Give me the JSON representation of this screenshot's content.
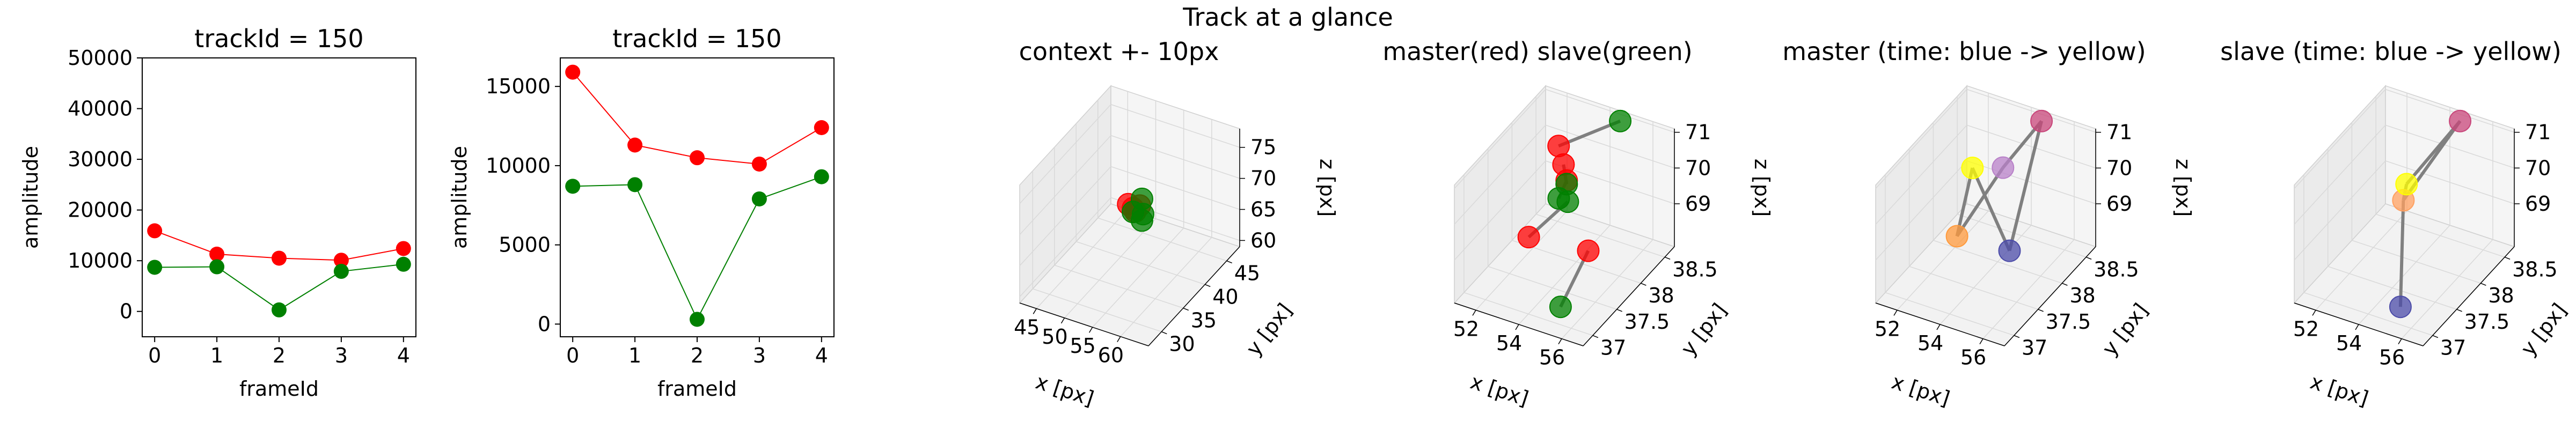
{
  "suptitle": "Track at a glance",
  "colors": {
    "master": "#ff0000",
    "slave": "#008000",
    "connector": "#808080"
  },
  "chart_data": [
    {
      "type": "line",
      "title": "trackId = 150",
      "xlabel": "frameId",
      "ylabel": "amplitude",
      "xlim": [
        -0.2,
        4.2
      ],
      "ylim": [
        -5000,
        50000
      ],
      "xticks": [
        0,
        1,
        2,
        3,
        4
      ],
      "yticks": [
        0,
        10000,
        20000,
        30000,
        40000,
        50000
      ],
      "x": [
        0,
        1,
        2,
        3,
        4
      ],
      "series": [
        {
          "color": "#ff0000",
          "values": [
            15900,
            11300,
            10500,
            10100,
            12400
          ]
        },
        {
          "color": "#008000",
          "values": [
            8700,
            8800,
            300,
            7900,
            9300
          ]
        }
      ]
    },
    {
      "type": "line",
      "title": "trackId = 150",
      "xlabel": "frameId",
      "ylabel": "amplitude",
      "xlim": [
        -0.2,
        4.2
      ],
      "ylim": [
        -800,
        16800
      ],
      "xticks": [
        0,
        1,
        2,
        3,
        4
      ],
      "yticks": [
        0,
        5000,
        10000,
        15000
      ],
      "x": [
        0,
        1,
        2,
        3,
        4
      ],
      "series": [
        {
          "color": "#ff0000",
          "values": [
            15900,
            11300,
            10500,
            10100,
            12400
          ]
        },
        {
          "color": "#008000",
          "values": [
            8700,
            8800,
            300,
            7900,
            9300
          ]
        }
      ]
    },
    {
      "type": "scatter3d",
      "title": "context +- 10px",
      "xlabel": "x [px]",
      "ylabel": "y [px]",
      "zlabel": "z [px]",
      "xlim": [
        42,
        65
      ],
      "ylim": [
        27,
        48
      ],
      "zlim": [
        59,
        78
      ],
      "xticks": [
        45,
        50,
        55,
        60
      ],
      "yticks": [
        30,
        35,
        40,
        45
      ],
      "zticks": [
        60,
        65,
        70,
        75
      ],
      "points": [
        {
          "x": 53,
          "y": 37.8,
          "z": 70.0,
          "color": "#ff0000"
        },
        {
          "x": 54,
          "y": 37.6,
          "z": 69.8,
          "color": "#ff0000"
        },
        {
          "x": 54.5,
          "y": 37.5,
          "z": 69.5,
          "color": "#ff0000"
        },
        {
          "x": 55,
          "y": 37.9,
          "z": 70.3,
          "color": "#ff0000"
        },
        {
          "x": 55,
          "y": 38.4,
          "z": 71.0,
          "color": "#008000"
        },
        {
          "x": 54,
          "y": 37.6,
          "z": 69.2,
          "color": "#008000"
        },
        {
          "x": 55.5,
          "y": 38.0,
          "z": 69.0,
          "color": "#008000"
        },
        {
          "x": 56,
          "y": 37.1,
          "z": 68.8,
          "color": "#008000"
        }
      ]
    },
    {
      "type": "scatter3d",
      "title": "master(red) slave(green)",
      "xlabel": "x [px]",
      "ylabel": "y [px]",
      "zlabel": "z [px]",
      "xlim": [
        51,
        57
      ],
      "ylim": [
        36.8,
        38.7
      ],
      "zlim": [
        67.8,
        71.1
      ],
      "xticks": [
        52,
        54,
        56
      ],
      "yticks": [
        37.0,
        37.5,
        38.0,
        38.5
      ],
      "zticks": [
        69,
        70,
        71
      ],
      "points": [
        {
          "x": 52.5,
          "y": 38.3,
          "z": 70.3,
          "color": "#ff0000"
        },
        {
          "x": 53.4,
          "y": 38.0,
          "z": 70.4,
          "color": "#ff0000"
        },
        {
          "x": 53.1,
          "y": 38.2,
          "z": 69.6,
          "color": "#ff0000"
        },
        {
          "x": 55.0,
          "y": 37.8,
          "z": 68.6,
          "color": "#ff0000"
        },
        {
          "x": 52.9,
          "y": 37.5,
          "z": 69.0,
          "color": "#ff0000"
        },
        {
          "x": 54.7,
          "y": 38.6,
          "z": 71.0,
          "color": "#008000"
        },
        {
          "x": 53.1,
          "y": 38.2,
          "z": 69.5,
          "color": "#008000"
        },
        {
          "x": 53.4,
          "y": 37.9,
          "z": 69.6,
          "color": "#008000"
        },
        {
          "x": 55.5,
          "y": 37.0,
          "z": 68.3,
          "color": "#008000"
        },
        {
          "x": 53.6,
          "y": 38.0,
          "z": 69.4,
          "color": "#008000"
        }
      ],
      "segments": [
        [
          0,
          5
        ],
        [
          1,
          6
        ],
        [
          2,
          7
        ],
        [
          3,
          8
        ],
        [
          4,
          9
        ]
      ]
    },
    {
      "type": "scatter3d",
      "title": "master (time: blue -> yellow)",
      "xlabel": "x [px]",
      "ylabel": "y [px]",
      "zlabel": "z [px]",
      "xlim": [
        51,
        57
      ],
      "ylim": [
        36.8,
        38.7
      ],
      "zlim": [
        67.8,
        71.1
      ],
      "xticks": [
        52,
        54,
        56
      ],
      "yticks": [
        37.0,
        37.5,
        38.0,
        38.5
      ],
      "zticks": [
        69,
        70,
        71
      ],
      "points": [
        {
          "x": 55.0,
          "y": 37.8,
          "z": 68.6,
          "color": "#4b4ba8"
        },
        {
          "x": 54.7,
          "y": 38.6,
          "z": 71.0,
          "color": "#c8467a"
        },
        {
          "x": 53.8,
          "y": 38.2,
          "z": 70.1,
          "color": "#b880c8"
        },
        {
          "x": 53.0,
          "y": 37.6,
          "z": 68.9,
          "color": "#ff9a3c"
        },
        {
          "x": 52.6,
          "y": 38.1,
          "z": 70.0,
          "color": "#ffff00"
        }
      ],
      "segments": [
        [
          0,
          1
        ],
        [
          1,
          2
        ],
        [
          2,
          3
        ],
        [
          3,
          4
        ],
        [
          4,
          0
        ]
      ]
    },
    {
      "type": "scatter3d",
      "title": "slave (time: blue -> yellow)",
      "xlabel": "x [px]",
      "ylabel": "y [px]",
      "zlabel": "z [px]",
      "xlim": [
        51,
        57
      ],
      "ylim": [
        36.8,
        38.7
      ],
      "zlim": [
        67.8,
        71.1
      ],
      "xticks": [
        52,
        54,
        56
      ],
      "yticks": [
        37.0,
        37.5,
        38.0,
        38.5
      ],
      "zticks": [
        69,
        70,
        71
      ],
      "points": [
        {
          "x": 55.5,
          "y": 37.0,
          "z": 68.3,
          "color": "#4b4ba8"
        },
        {
          "x": 54.7,
          "y": 38.6,
          "z": 71.0,
          "color": "#c8467a"
        },
        {
          "x": 53.4,
          "y": 38.0,
          "z": 69.4,
          "color": "#ffa060"
        },
        {
          "x": 53.1,
          "y": 38.2,
          "z": 69.5,
          "color": "#ffff00"
        }
      ],
      "segments": [
        [
          0,
          2
        ],
        [
          2,
          1
        ],
        [
          1,
          3
        ],
        [
          3,
          2
        ]
      ]
    }
  ]
}
